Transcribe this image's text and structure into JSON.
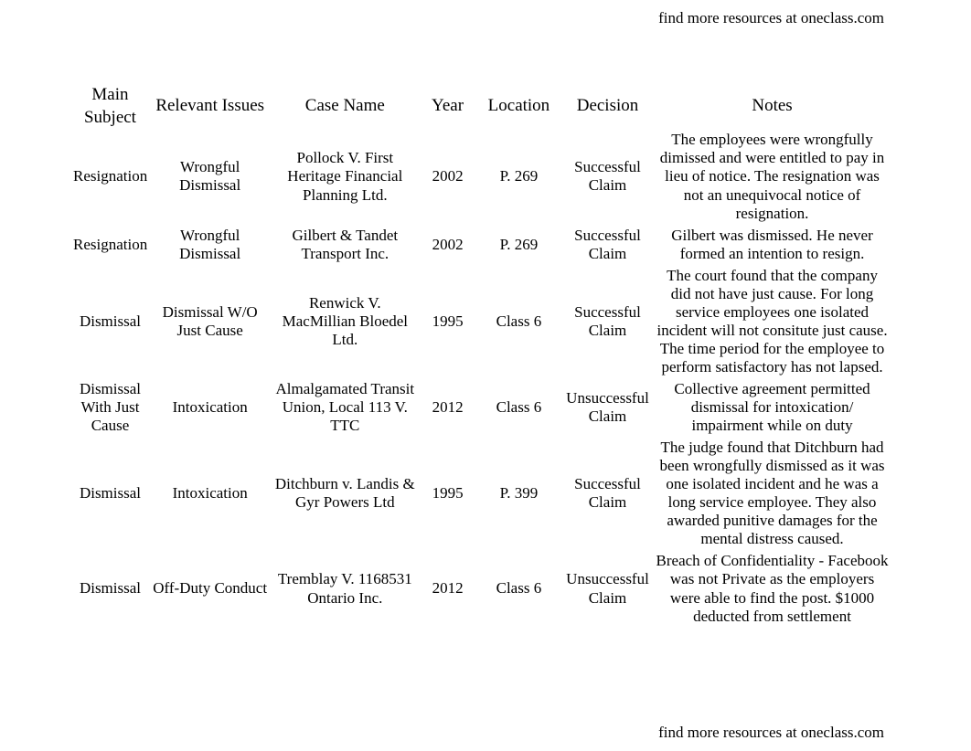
{
  "header_link_text": "find more resources at oneclass.com",
  "footer_link_text": "find more resources at oneclass.com",
  "table": {
    "columns": [
      "Main Subject",
      "Relevant Issues",
      "Case Name",
      "Year",
      "Location",
      "Decision",
      "Notes"
    ],
    "rows": [
      {
        "main_subject": "Resignation",
        "relevant_issues": "Wrongful Dismissal",
        "case_name": "Pollock V. First Heritage Financial Planning Ltd.",
        "year": "2002",
        "location": "P. 269",
        "decision": "Successful Claim",
        "notes": "The employees were wrongfully dimissed and were entitled to pay in lieu of notice. The resignation was not an unequivocal notice of resignation."
      },
      {
        "main_subject": "Resignation",
        "relevant_issues": "Wrongful Dismissal",
        "case_name": "Gilbert & Tandet Transport Inc.",
        "year": "2002",
        "location": "P. 269",
        "decision": "Successful Claim",
        "notes": "Gilbert was dismissed. He never formed an intention to resign."
      },
      {
        "main_subject": "Dismissal",
        "relevant_issues": "Dismissal W/O Just Cause",
        "case_name": "Renwick V. MacMillian Bloedel Ltd.",
        "year": "1995",
        "location": "Class 6",
        "decision": "Successful Claim",
        "notes": "The court found that the company did not have just cause. For long service employees one isolated incident will not consitute just cause. The time period for the employee to perform satisfactory has not lapsed."
      },
      {
        "main_subject": "Dismissal With Just Cause",
        "relevant_issues": "Intoxication",
        "case_name": "Almalgamated Transit Union, Local 113 V. TTC",
        "year": "2012",
        "location": "Class 6",
        "decision": "Unsuccessful Claim",
        "notes": "Collective agreement permitted dismissal for intoxication/ impairment while on duty"
      },
      {
        "main_subject": "Dismissal",
        "relevant_issues": "Intoxication",
        "case_name": "Ditchburn v. Landis & Gyr Powers Ltd",
        "year": "1995",
        "location": "P. 399",
        "decision": "Successful Claim",
        "notes": "The judge found that Ditchburn had been wrongfully dismissed as it was one isolated incident and he was a long service employee. They also awarded punitive damages for the mental distress caused."
      },
      {
        "main_subject": "Dismissal",
        "relevant_issues": "Off-Duty Conduct",
        "case_name": "Tremblay V. 1168531 Ontario Inc.",
        "year": "2012",
        "location": "Class 6",
        "decision": "Unsuccessful Claim",
        "notes": "Breach of Confidentiality - Facebook was not Private as the employers were able to find the post. $1000 deducted from settlement"
      }
    ]
  },
  "style": {
    "background_color": "#ffffff",
    "text_color": "#000000",
    "header_fontsize": 19,
    "body_fontsize": 17,
    "font_family": "Times New Roman"
  }
}
